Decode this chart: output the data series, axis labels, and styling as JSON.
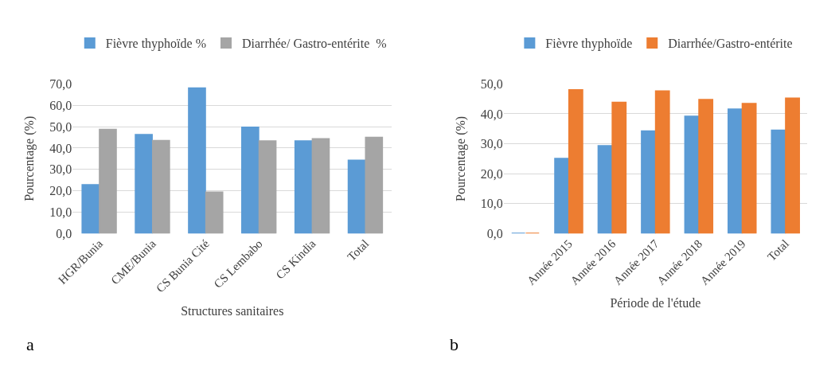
{
  "chart_data": [
    {
      "type": "bar",
      "xlabel": "Structures sanitaires",
      "ylabel": "Pourcentage (%)",
      "categories": [
        "HGR/Bunia",
        "CME/Bunia",
        "CS Bunia Cité",
        "CS Lembabo",
        "CS Kindia",
        "Total"
      ],
      "series": [
        {
          "name": "Fièvre thyphoïde %",
          "color": "#5b9bd5",
          "values": [
            22.7,
            46.2,
            68.0,
            49.7,
            43.2,
            34.2
          ]
        },
        {
          "name": "Diarrhée/ Gastro-entérite  %",
          "color": "#a5a5a5",
          "values": [
            48.6,
            43.4,
            19.3,
            43.2,
            44.3,
            44.9
          ]
        }
      ],
      "ylim": [
        0,
        70
      ],
      "yticks": [
        {
          "value": 0,
          "label": "0,0"
        },
        {
          "value": 10,
          "label": "10,0"
        },
        {
          "value": 20,
          "label": "20,0"
        },
        {
          "value": 30,
          "label": "30,0"
        },
        {
          "value": 40,
          "label": "40,0"
        },
        {
          "value": 50,
          "label": "50,0"
        },
        {
          "value": 60,
          "label": "60,0"
        },
        {
          "value": 70,
          "label": "70,0"
        }
      ],
      "grid": "y",
      "legend": "top",
      "annotations": [
        "a"
      ]
    },
    {
      "type": "bar",
      "xlabel": "Période de l'étude",
      "ylabel": "Pourcentage (%)",
      "categories": [
        null,
        "Année 2015",
        "Année 2016",
        "Année 2017",
        "Année 2018",
        "Année 2019",
        "Total"
      ],
      "series": [
        {
          "name": "Fièvre thyphoïde",
          "color": "#5b9bd5",
          "values": [
            0,
            25.0,
            29.3,
            34.2,
            39.1,
            41.5,
            34.5
          ]
        },
        {
          "name": "Diarrhée/Gastro-entérite",
          "color": "#ed7d31",
          "values": [
            0,
            48.0,
            43.8,
            47.6,
            44.7,
            43.4,
            45.2
          ]
        }
      ],
      "ylim": [
        0,
        50
      ],
      "yticks": [
        {
          "value": 0,
          "label": "0,0"
        },
        {
          "value": 10,
          "label": "10,0"
        },
        {
          "value": 20,
          "label": "20,0"
        },
        {
          "value": 30,
          "label": "30,0"
        },
        {
          "value": 40,
          "label": "40,0"
        },
        {
          "value": 50,
          "label": "50,0"
        }
      ],
      "grid": "y",
      "legend": "top",
      "annotations": [
        "b"
      ]
    }
  ]
}
